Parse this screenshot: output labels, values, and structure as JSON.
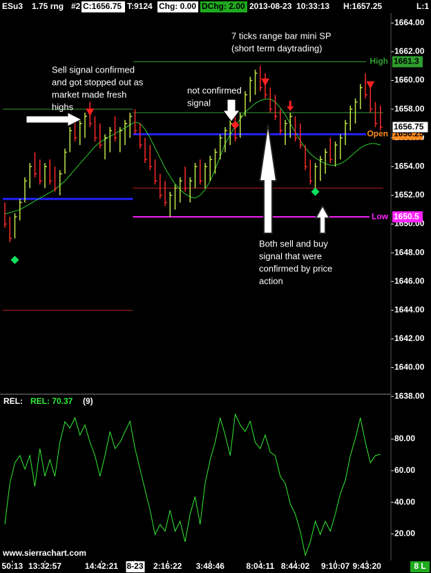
{
  "header": {
    "symbol": "ESu3",
    "bar_type": "1.75 rng",
    "chart_number": "#2",
    "close": "C:1656.75",
    "ticks": "T:9124",
    "change": "Chg: 0.00",
    "day_change": "DChg: 2.00",
    "datetime": "2013-08-23  10:33:13",
    "high": "H:1657.25",
    "low": "L:1"
  },
  "chart_data": [
    {
      "type": "ohlc",
      "annotations": [
        {
          "lines": [
            "7 ticks range bar mini SP",
            "(short term daytrading)"
          ]
        },
        {
          "lines": [
            "Sell signal confirmed",
            "and got stopped out as",
            "market made fresh",
            "highs"
          ]
        },
        {
          "lines": [
            "not confirmed",
            "signal"
          ]
        },
        {
          "lines": [
            "Both sell and buy",
            "signal that were",
            "confirmed by price",
            "action"
          ]
        }
      ],
      "up_color": "#c2e84a",
      "down_color": "#ff2a2a",
      "high": [
        1651.5,
        1650.5,
        1650.75,
        1651.75,
        1653.25,
        1654.25,
        1655,
        1654.5,
        1654.25,
        1654.5,
        1654,
        1653.75,
        1655.25,
        1656.75,
        1657.5,
        1657.25,
        1657.75,
        1658.5,
        1657.5,
        1657,
        1656.25,
        1656.75,
        1657.5,
        1656.75,
        1657.25,
        1657.75,
        1658,
        1657,
        1656,
        1655.5,
        1654.5,
        1653.5,
        1653,
        1652.25,
        1652.75,
        1653.25,
        1654,
        1653.25,
        1654.25,
        1654.5,
        1654.25,
        1654.75,
        1655.25,
        1656.25,
        1656.75,
        1657.25,
        1657.5,
        1657.75,
        1659.25,
        1660.25,
        1660.75,
        1661,
        1660.5,
        1659.5,
        1659,
        1658,
        1657.25,
        1657.75,
        1657.5,
        1657,
        1655.5,
        1654.5,
        1654.25,
        1654.75,
        1655.25,
        1656,
        1655.75,
        1656.25,
        1657.25,
        1658.25,
        1658.75,
        1659.75,
        1660.5,
        1659.5,
        1658.5,
        1658.25
      ],
      "low": [
        1649.75,
        1648.75,
        1649,
        1650.25,
        1651.5,
        1652.5,
        1653.25,
        1652.75,
        1652.5,
        1652.75,
        1652.25,
        1652,
        1653.5,
        1655,
        1655.75,
        1655.5,
        1656,
        1656.75,
        1655.75,
        1655.25,
        1654.5,
        1655,
        1655.75,
        1655,
        1655.5,
        1656,
        1656.25,
        1655.25,
        1654.25,
        1653.75,
        1652.75,
        1651.75,
        1651.25,
        1650.5,
        1651,
        1651.5,
        1652.25,
        1651.5,
        1652.5,
        1652.75,
        1652.5,
        1653,
        1653.5,
        1654.5,
        1655,
        1655.5,
        1655.75,
        1656,
        1657.5,
        1658.5,
        1659,
        1659.25,
        1658.75,
        1657.75,
        1657.25,
        1656.25,
        1655.5,
        1656,
        1655.75,
        1655.25,
        1653.75,
        1652.75,
        1652.5,
        1653,
        1653.5,
        1654.25,
        1654,
        1654.5,
        1655.5,
        1656.5,
        1657,
        1658,
        1658.75,
        1657.75,
        1656.75,
        1656.5
      ],
      "close": [
        1650,
        1649,
        1650.5,
        1651.5,
        1653,
        1654,
        1653.5,
        1653,
        1654,
        1653,
        1652.5,
        1653.5,
        1655,
        1656.5,
        1656,
        1657,
        1657.5,
        1657,
        1656,
        1655.5,
        1656,
        1656.5,
        1656,
        1656.5,
        1657,
        1657.5,
        1656.5,
        1655.5,
        1654.5,
        1654,
        1653,
        1652,
        1651.5,
        1652,
        1652.5,
        1653,
        1652.5,
        1653,
        1654,
        1653,
        1654,
        1654.5,
        1655,
        1656,
        1656.5,
        1657,
        1656,
        1657.5,
        1659,
        1660,
        1660.5,
        1659.5,
        1659,
        1658,
        1657.5,
        1656.5,
        1657,
        1657.5,
        1656,
        1655.5,
        1654,
        1653,
        1654,
        1654.5,
        1655,
        1654.5,
        1655.5,
        1656,
        1657,
        1658,
        1658.5,
        1659.5,
        1659,
        1658,
        1657,
        1656.75
      ],
      "ma": {
        "color": "#2fd02f",
        "values": [
          1650.7,
          1650.8,
          1650.9,
          1651.0,
          1651.2,
          1651.4,
          1651.6,
          1651.8,
          1652.0,
          1652.2,
          1652.4,
          1652.7,
          1653.0,
          1653.4,
          1653.8,
          1654.2,
          1654.6,
          1655.0,
          1655.4,
          1655.7,
          1655.9,
          1656.1,
          1656.3,
          1656.5,
          1656.7,
          1656.9,
          1657.1,
          1657.0,
          1656.6,
          1656.0,
          1655.3,
          1654.6,
          1653.9,
          1653.3,
          1652.8,
          1652.4,
          1652.1,
          1651.9,
          1651.8,
          1652.0,
          1652.4,
          1653.0,
          1653.8,
          1654.7,
          1655.6,
          1656.2,
          1656.8,
          1657.3,
          1657.8,
          1658.1,
          1658.4,
          1658.6,
          1658.7,
          1658.7,
          1658.5,
          1658.1,
          1657.6,
          1657.0,
          1656.4,
          1655.8,
          1655.3,
          1654.9,
          1654.6,
          1654.4,
          1654.2,
          1654.1,
          1654.1,
          1654.2,
          1654.4,
          1654.7,
          1655.0,
          1655.3,
          1655.5,
          1655.6,
          1655.6,
          1655.5
        ]
      },
      "levels": [
        {
          "value": 1658,
          "color": "#3a9a3a",
          "from": 0,
          "to": 25
        },
        {
          "value": 1651.75,
          "color": "#2222ff",
          "from": 0,
          "to": 25
        },
        {
          "value": 1644,
          "color": "#b22222",
          "from": 0,
          "to": 25
        },
        {
          "name": "High",
          "value": 1661.3,
          "color": "#2e9e2e",
          "label_color": "#2e9e2e",
          "from": 26,
          "to": 75
        },
        {
          "value": 1657.75,
          "color": "#3a9a3a",
          "from": 26,
          "to": 75
        },
        {
          "name": "Open",
          "value": 1656.25,
          "color": "#2222ff",
          "label_color": "#ff8c1a",
          "from": 26,
          "to": 75
        },
        {
          "value": 1652.5,
          "color": "#b22222",
          "from": 26,
          "to": 75
        },
        {
          "name": "Low",
          "value": 1650.5,
          "color": "#ff22ff",
          "label_color": "#ff22ff",
          "from": 26,
          "to": 75
        }
      ],
      "buy_color": "#10e060",
      "sell_color": "#ff2020",
      "signals": {
        "buy": [
          {
            "index": 2,
            "value": 1647.5
          },
          {
            "index": 62,
            "value": 1652.25
          }
        ],
        "sell": [
          {
            "index": 17,
            "value": 1657.8,
            "shape": "triangle"
          },
          {
            "index": 46,
            "value": 1656.9,
            "shape": "diamond"
          },
          {
            "index": 52,
            "value": 1659.9,
            "shape": "triangle"
          },
          {
            "index": 57,
            "value": 1658.2,
            "shape": "arrow"
          },
          {
            "index": 73,
            "value": 1659.7,
            "shape": "triangle"
          }
        ]
      },
      "last": 1656.75,
      "ylim": [
        1638.2,
        1665.6
      ],
      "yticks": [
        {
          "value": 1638,
          "label": "1638.00"
        },
        {
          "value": 1640,
          "label": "1640.00"
        },
        {
          "value": 1642,
          "label": "1642.00"
        },
        {
          "value": 1644,
          "label": "1644.00"
        },
        {
          "value": 1646,
          "label": "1646.00"
        },
        {
          "value": 1648,
          "label": "1648.00"
        },
        {
          "value": 1650,
          "label": "1650.00"
        },
        {
          "value": 1652,
          "label": "1652.00"
        },
        {
          "value": 1654,
          "label": "1654.00"
        },
        {
          "value": 1656,
          "label": "1656.00"
        },
        {
          "value": 1658,
          "label": "1658.00"
        },
        {
          "value": 1660,
          "label": "1660.00"
        },
        {
          "value": 1662,
          "label": "1662.00"
        },
        {
          "value": 1664,
          "label": "1664.00"
        }
      ],
      "xticks": [
        {
          "value": 1.5,
          "label": "50:13"
        },
        {
          "value": 8,
          "label": "13:32:57"
        },
        {
          "value": 19.3,
          "label": "14:42:21"
        },
        {
          "value": 26,
          "label": "8-23"
        },
        {
          "value": 32.5,
          "label": "2:16:22"
        },
        {
          "value": 41,
          "label": "3:48:46"
        },
        {
          "value": 51,
          "label": "8:04:11"
        },
        {
          "value": 58,
          "label": "8:44:02"
        },
        {
          "value": 66,
          "label": "9:10:07"
        },
        {
          "value": 72.3,
          "label": "9:43:20"
        }
      ],
      "source": "www.sierrachart.com",
      "status": "8 L"
    },
    {
      "type": "line",
      "title": "REL:",
      "period": "(9)",
      "series": [
        {
          "name": "REL: 70.37",
          "color": "#33ee33",
          "values": [
            26,
            52,
            65,
            69.6,
            61,
            69.6,
            50,
            74,
            56.5,
            67,
            56.5,
            78,
            91,
            87,
            93.5,
            82.6,
            89,
            78,
            69.6,
            56.5,
            69.6,
            84.8,
            74,
            78,
            84.8,
            91.3,
            74,
            61,
            48,
            35,
            19.6,
            26,
            21.7,
            35,
            21.7,
            28,
            15,
            32.6,
            43.5,
            26,
            52,
            67,
            78,
            93.5,
            82.6,
            69.6,
            95.7,
            89,
            84.8,
            91.3,
            78,
            74,
            82.6,
            71.7,
            69.6,
            56.5,
            52,
            39,
            32.6,
            21.7,
            6.5,
            15,
            28,
            19.6,
            28,
            21.7,
            32.6,
            45.6,
            54,
            69.6,
            80.4,
            93.5,
            78,
            65,
            69.6,
            70.37
          ]
        }
      ],
      "ylim": [
        4,
        108
      ],
      "yticks": [
        {
          "value": 20,
          "label": "20.00"
        },
        {
          "value": 40,
          "label": "40.00"
        },
        {
          "value": 60,
          "label": "60.00"
        },
        {
          "value": 80,
          "label": "80.00"
        }
      ]
    }
  ]
}
